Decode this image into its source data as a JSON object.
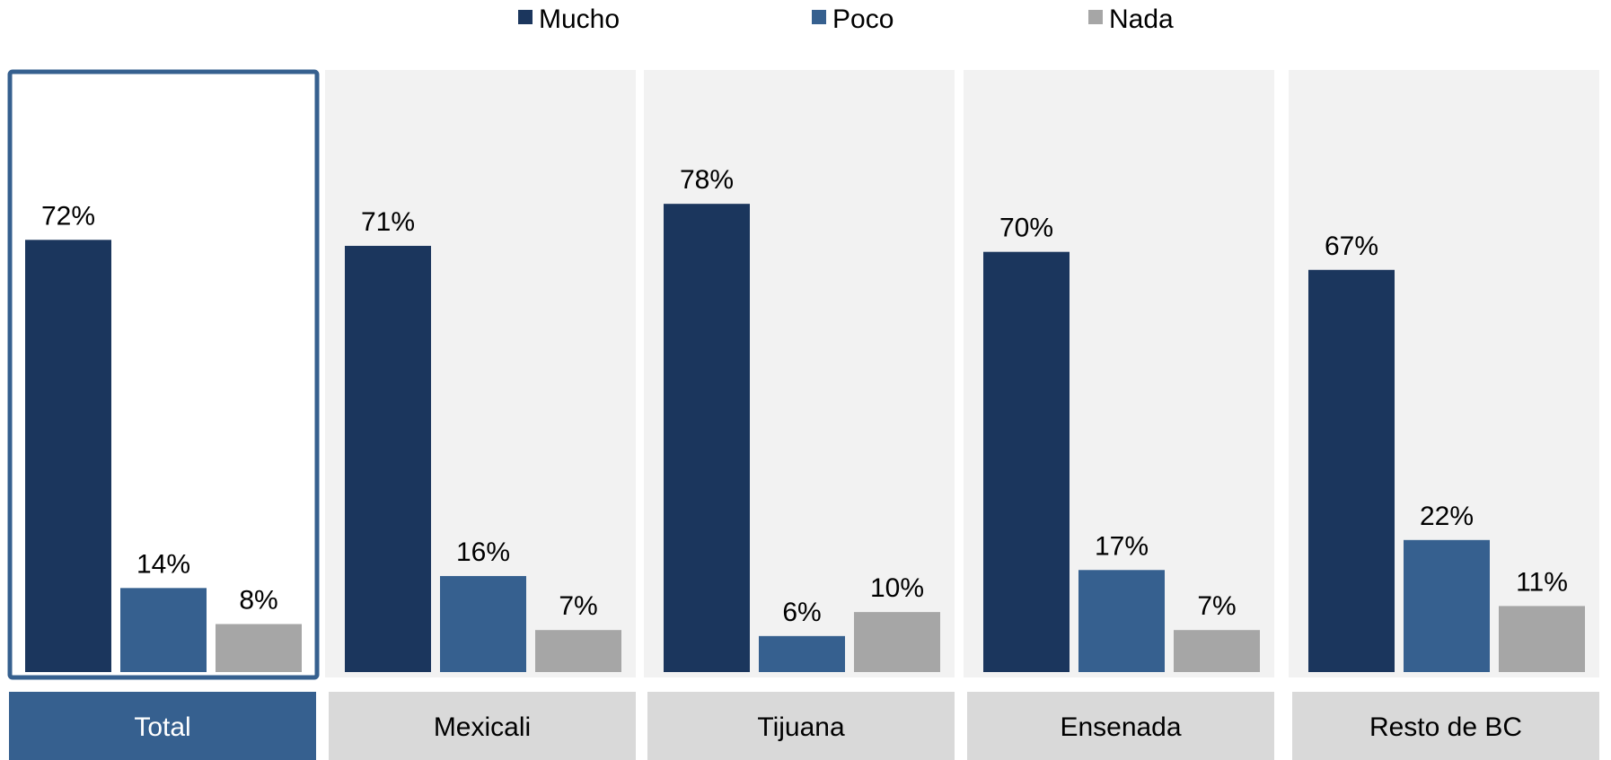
{
  "chart_data": {
    "type": "bar",
    "categories": [
      "Total",
      "Mexicali",
      "Tijuana",
      "Ensenada",
      "Resto de BC"
    ],
    "series": [
      {
        "name": "Mucho",
        "values": [
          72,
          71,
          78,
          70,
          67
        ],
        "labels": [
          "72%",
          "71%",
          "78%",
          "70%",
          "67%"
        ]
      },
      {
        "name": "Poco",
        "values": [
          14,
          16,
          6,
          17,
          22
        ],
        "labels": [
          "14%",
          "16%",
          "6%",
          "17%",
          "22%"
        ]
      },
      {
        "name": "Nada",
        "values": [
          8,
          7,
          10,
          7,
          11
        ],
        "labels": [
          "8%",
          "7%",
          "10%",
          "7%",
          "11%"
        ]
      }
    ],
    "colors": [
      "#1b365d",
      "#36608f",
      "#a6a6a6"
    ],
    "panel_colors": {
      "highlight_border": "#36608f",
      "panel_bg": "#f2f2f2",
      "label_bg": "#d9d9d9",
      "highlight_label_bg": "#36608f",
      "highlight_label_text": "#ffffff"
    },
    "highlighted_category": "Total",
    "legend_position": "top",
    "ylim": [
      0,
      100
    ],
    "grid": false,
    "title": "",
    "xlabel": "",
    "ylabel": ""
  }
}
